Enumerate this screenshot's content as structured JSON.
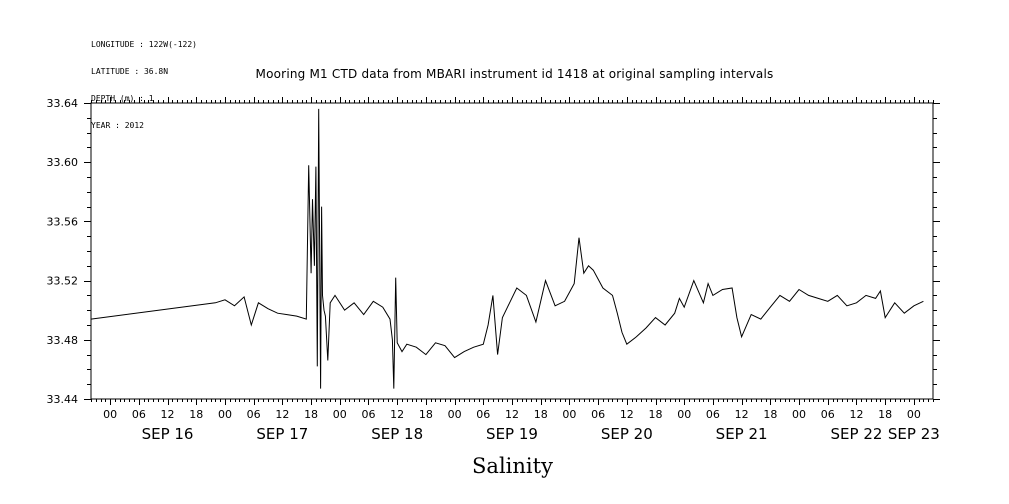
{
  "meta": {
    "lines": [
      "LONGITUDE : 122W(-122)",
      "LATITUDE : 36.8N",
      "DEPTH (m) : 1",
      "YEAR : 2012"
    ]
  },
  "chart_data": {
    "type": "line",
    "title": "Mooring M1 CTD data from MBARI instrument id 1418 at original sampling intervals",
    "xlabel": "Salinity",
    "ylabel": "",
    "ylim": [
      33.44,
      33.64
    ],
    "xlim_hours": [
      -4,
      172
    ],
    "y_ticks": [
      "33.44",
      "33.48",
      "33.52",
      "33.56",
      "33.60",
      "33.64"
    ],
    "y_tick_values": [
      33.44,
      33.48,
      33.52,
      33.56,
      33.6,
      33.64
    ],
    "hour_tick_labels": [
      "00",
      "06",
      "12",
      "18",
      "00",
      "06",
      "12",
      "18",
      "00",
      "06",
      "12",
      "18",
      "00",
      "06",
      "12",
      "18",
      "00",
      "06",
      "12",
      "18",
      "00",
      "06",
      "12",
      "18",
      "00",
      "06",
      "12",
      "18",
      "00"
    ],
    "day_labels": [
      {
        "label": "SEP 16",
        "at_hour": 12
      },
      {
        "label": "SEP 17",
        "at_hour": 36
      },
      {
        "label": "SEP 18",
        "at_hour": 60
      },
      {
        "label": "SEP 19",
        "at_hour": 84
      },
      {
        "label": "SEP 20",
        "at_hour": 108
      },
      {
        "label": "SEP 21",
        "at_hour": 132
      },
      {
        "label": "SEP 22",
        "at_hour": 156
      },
      {
        "label": "SEP 23",
        "at_hour": 168
      }
    ],
    "grid": false,
    "series": [
      {
        "x": [
          -4,
          22,
          24,
          26,
          28,
          29.5,
          31,
          33,
          35,
          37,
          39,
          41,
          41.5,
          42,
          42.3,
          42.7,
          43,
          43.3,
          43.6,
          44,
          44.2,
          44.4,
          44.7,
          45,
          45.5,
          46,
          47,
          49,
          51,
          53,
          55,
          57,
          58.5,
          59,
          59.3,
          59.7,
          60,
          61,
          62,
          64,
          66,
          68,
          70,
          72,
          74,
          76,
          78,
          79,
          80,
          81,
          82,
          83.5,
          85,
          87,
          89,
          91,
          93,
          95,
          97,
          98,
          99,
          100,
          101,
          103,
          105,
          106,
          107,
          108,
          110,
          112,
          114,
          116,
          118,
          119,
          120,
          122,
          124,
          125,
          126,
          128,
          130,
          131,
          132,
          134,
          136,
          138,
          140,
          142,
          144,
          146,
          148,
          150,
          152,
          154,
          156,
          158,
          160,
          161,
          162,
          164,
          166,
          168,
          170
        ],
        "y": [
          33.494,
          33.505,
          33.507,
          33.503,
          33.509,
          33.49,
          33.505,
          33.501,
          33.498,
          33.497,
          33.496,
          33.494,
          33.598,
          33.525,
          33.575,
          33.53,
          33.597,
          33.462,
          33.636,
          33.447,
          33.57,
          33.51,
          33.5,
          33.496,
          33.466,
          33.505,
          33.51,
          33.5,
          33.505,
          33.497,
          33.506,
          33.502,
          33.494,
          33.48,
          33.447,
          33.522,
          33.478,
          33.472,
          33.477,
          33.475,
          33.47,
          33.478,
          33.476,
          33.468,
          33.472,
          33.475,
          33.477,
          33.49,
          33.51,
          33.47,
          33.495,
          33.505,
          33.515,
          33.51,
          33.492,
          33.52,
          33.503,
          33.506,
          33.518,
          33.549,
          33.525,
          33.53,
          33.527,
          33.515,
          33.51,
          33.498,
          33.485,
          33.477,
          33.482,
          33.488,
          33.495,
          33.49,
          33.498,
          33.508,
          33.502,
          33.52,
          33.505,
          33.518,
          33.51,
          33.514,
          33.515,
          33.495,
          33.482,
          33.497,
          33.494,
          33.502,
          33.51,
          33.506,
          33.514,
          33.51,
          33.508,
          33.506,
          33.51,
          33.503,
          33.505,
          33.51,
          33.508,
          33.513,
          33.495,
          33.505,
          33.498,
          33.503,
          33.506
        ]
      }
    ]
  }
}
